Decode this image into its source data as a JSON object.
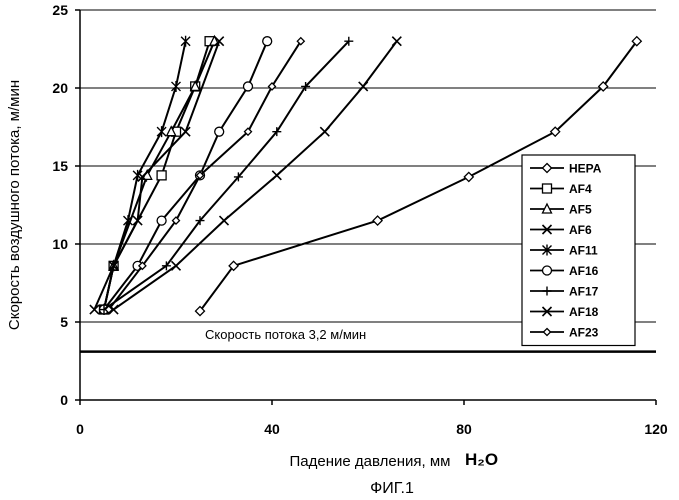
{
  "chart_data": {
    "type": "line",
    "title": "",
    "xlabel": "Падение давления, мм",
    "xlabel_unit": "H₂O",
    "ylabel": "Скорость воздушного потока, м/мин",
    "xlim": [
      0,
      120
    ],
    "ylim": [
      0,
      25
    ],
    "xticks": [
      "0",
      "40",
      "80",
      "120"
    ],
    "yticks": [
      "0",
      "5",
      "10",
      "15",
      "20",
      "25"
    ],
    "grid": "horizontal",
    "legend_position": "right",
    "annotation": "Скорость потока 3,2 м/мин",
    "reference_line_y": 3.1,
    "caption": "ФИГ.1",
    "series": [
      {
        "name": "HEPA",
        "marker": "diamond",
        "x": [
          25,
          32,
          62,
          81,
          99,
          109,
          116
        ],
        "y": [
          5.7,
          8.6,
          11.5,
          14.3,
          17.2,
          20.1,
          23.0
        ]
      },
      {
        "name": "AF4",
        "marker": "square",
        "x": [
          5,
          7,
          17,
          20,
          24,
          27
        ],
        "y": [
          5.8,
          8.6,
          14.4,
          17.2,
          20.1,
          23.0
        ]
      },
      {
        "name": "AF5",
        "marker": "triangle",
        "x": [
          5,
          7,
          14,
          19,
          24,
          28
        ],
        "y": [
          5.8,
          8.6,
          14.4,
          17.2,
          20.1,
          23.0
        ]
      },
      {
        "name": "AF6",
        "marker": "x",
        "x": [
          3,
          7,
          12,
          13,
          22,
          29
        ],
        "y": [
          5.8,
          8.6,
          11.5,
          14.3,
          17.2,
          23.0
        ]
      },
      {
        "name": "AF11",
        "marker": "star",
        "x": [
          5,
          7,
          10,
          12,
          17,
          20,
          22
        ],
        "y": [
          5.8,
          8.6,
          11.5,
          14.4,
          17.2,
          20.1,
          23.0
        ]
      },
      {
        "name": "AF16",
        "marker": "circle",
        "x": [
          5,
          12,
          17,
          25,
          29,
          35,
          39
        ],
        "y": [
          5.8,
          8.6,
          11.5,
          14.4,
          17.2,
          20.1,
          23.0
        ]
      },
      {
        "name": "AF17",
        "marker": "plus",
        "x": [
          5,
          18,
          25,
          33,
          41,
          47,
          56
        ],
        "y": [
          5.8,
          8.6,
          11.5,
          14.3,
          17.2,
          20.1,
          23.0
        ]
      },
      {
        "name": "AF18",
        "marker": "x",
        "x": [
          7,
          20,
          30,
          41,
          51,
          59,
          66
        ],
        "y": [
          5.8,
          8.6,
          11.5,
          14.4,
          17.2,
          20.1,
          23.0
        ]
      },
      {
        "name": "AF23",
        "marker": "diamond-small",
        "x": [
          6,
          13,
          20,
          25,
          35,
          40,
          46
        ],
        "y": [
          5.8,
          8.6,
          11.5,
          14.4,
          17.2,
          20.1,
          23.0
        ]
      }
    ]
  }
}
